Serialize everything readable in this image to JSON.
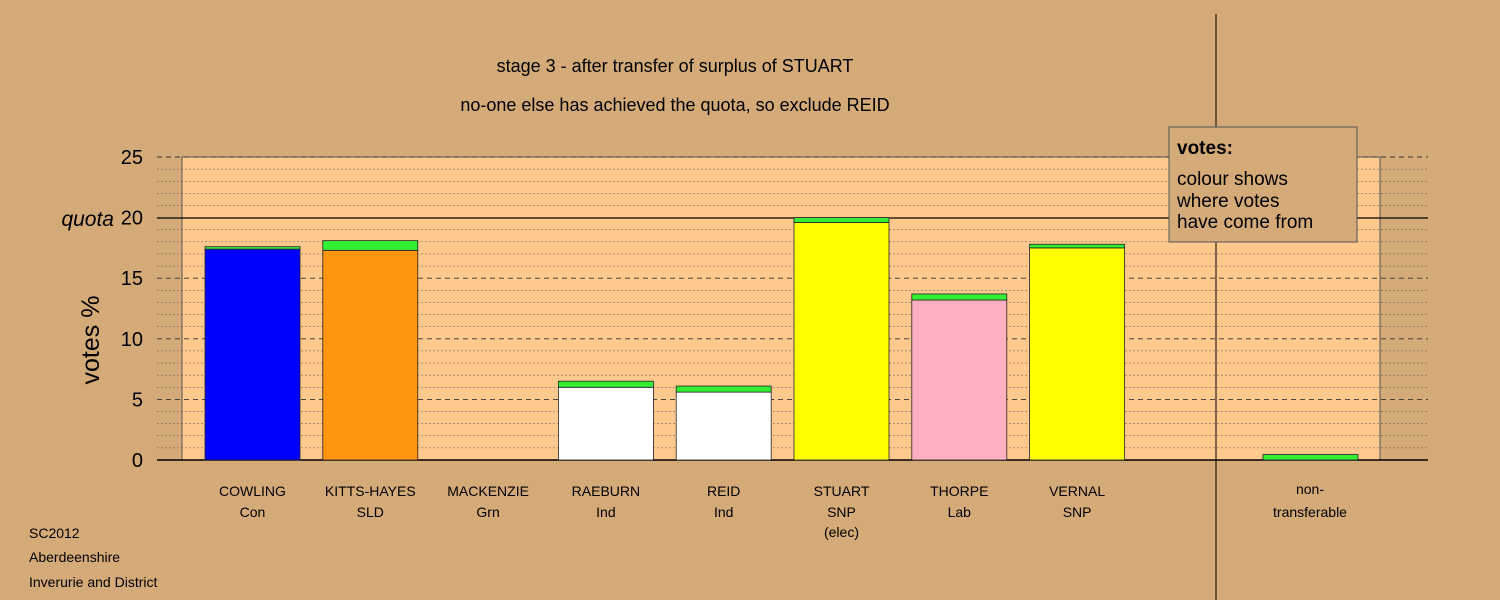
{
  "chart_data": {
    "type": "bar",
    "stacked": true,
    "title": "stage 3 - after transfer of surplus of STUART",
    "subtitle": "no-one else has achieved the quota, so exclude REID",
    "ylabel": "votes %",
    "ylim": [
      0,
      25
    ],
    "yticks": [
      0,
      5,
      10,
      15,
      20,
      25
    ],
    "quota": {
      "label": "quota",
      "value": 20
    },
    "grid": "dashed",
    "legend": {
      "title": "votes:",
      "lines": [
        "colour shows",
        "where votes",
        "have come from"
      ],
      "placement": "top-right"
    },
    "candidates": [
      {
        "name": "COWLING",
        "party": "Con",
        "extra": "",
        "base": 17.4,
        "transfer": 0.2,
        "color": "#0000FF"
      },
      {
        "name": "KITTS-HAYES",
        "party": "SLD",
        "extra": "",
        "base": 17.3,
        "transfer": 0.8,
        "color": "#FF9410"
      },
      {
        "name": "MACKENZIE",
        "party": "Grn",
        "extra": "",
        "base": 0,
        "transfer": 0,
        "color": "#33CC33"
      },
      {
        "name": "RAEBURN",
        "party": "Ind",
        "extra": "",
        "base": 6.0,
        "transfer": 0.5,
        "color": "#FFFFFF"
      },
      {
        "name": "REID",
        "party": "Ind",
        "extra": "",
        "base": 5.6,
        "transfer": 0.5,
        "color": "#FFFFFF"
      },
      {
        "name": "STUART",
        "party": "SNP",
        "extra": "(elec)",
        "base": 19.6,
        "transfer": 0.4,
        "color": "#FFFF00"
      },
      {
        "name": "THORPE",
        "party": "Lab",
        "extra": "",
        "base": 13.2,
        "transfer": 0.5,
        "color": "#FFB0C0"
      },
      {
        "name": "VERNAL",
        "party": "SNP",
        "extra": "",
        "base": 17.5,
        "transfer": 0.3,
        "color": "#FFFF00"
      }
    ],
    "non_transferable": {
      "line1": "non-",
      "line2": "transferable",
      "value": 0.45
    },
    "transfer_color": "#33EE33"
  },
  "colors": {
    "background": "#D4AA78",
    "plot_area": "#FFC98E",
    "legend_box": "#D4AA78"
  },
  "footer": {
    "line1": "SC2012",
    "line2": "Aberdeenshire",
    "line3": "Inverurie and District"
  }
}
